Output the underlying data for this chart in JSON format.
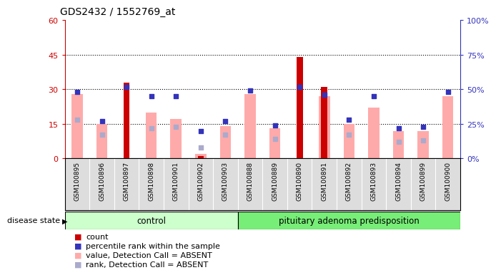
{
  "title": "GDS2432 / 1552769_at",
  "samples": [
    "GSM100895",
    "GSM100896",
    "GSM100897",
    "GSM100898",
    "GSM100901",
    "GSM100902",
    "GSM100903",
    "GSM100888",
    "GSM100889",
    "GSM100890",
    "GSM100891",
    "GSM100892",
    "GSM100893",
    "GSM100894",
    "GSM100899",
    "GSM100900"
  ],
  "control_count": 7,
  "group_labels": [
    "control",
    "pituitary adenoma predisposition"
  ],
  "count_values": [
    0,
    0,
    33,
    0,
    0,
    1,
    0,
    0,
    0,
    44,
    31,
    0,
    0,
    0,
    0,
    0
  ],
  "pink_bar_values": [
    28,
    15,
    0,
    20,
    17,
    2,
    14,
    28,
    13,
    0,
    27,
    15,
    22,
    12,
    12,
    27
  ],
  "blue_square_values": [
    48,
    27,
    52,
    45,
    45,
    20,
    27,
    49,
    24,
    52,
    46,
    28,
    45,
    22,
    23,
    48
  ],
  "light_blue_values": [
    28,
    17,
    0,
    22,
    23,
    8,
    17,
    0,
    14,
    0,
    0,
    17,
    0,
    12,
    13,
    0
  ],
  "ylim_left": [
    0,
    60
  ],
  "ylim_right": [
    0,
    100
  ],
  "yticks_left": [
    0,
    15,
    30,
    45,
    60
  ],
  "yticks_right": [
    0,
    25,
    50,
    75,
    100
  ],
  "yticklabels_right": [
    "0%",
    "25%",
    "50%",
    "75%",
    "100%"
  ],
  "color_red": "#cc0000",
  "color_pink": "#ffaaaa",
  "color_blue": "#3333bb",
  "color_light_blue": "#aaaacc",
  "color_control_bg": "#ccffcc",
  "color_disease_bg": "#77ee77",
  "color_xticklabel_bg": "#dddddd",
  "background_color": "#ffffff",
  "disease_state_label": "disease state"
}
